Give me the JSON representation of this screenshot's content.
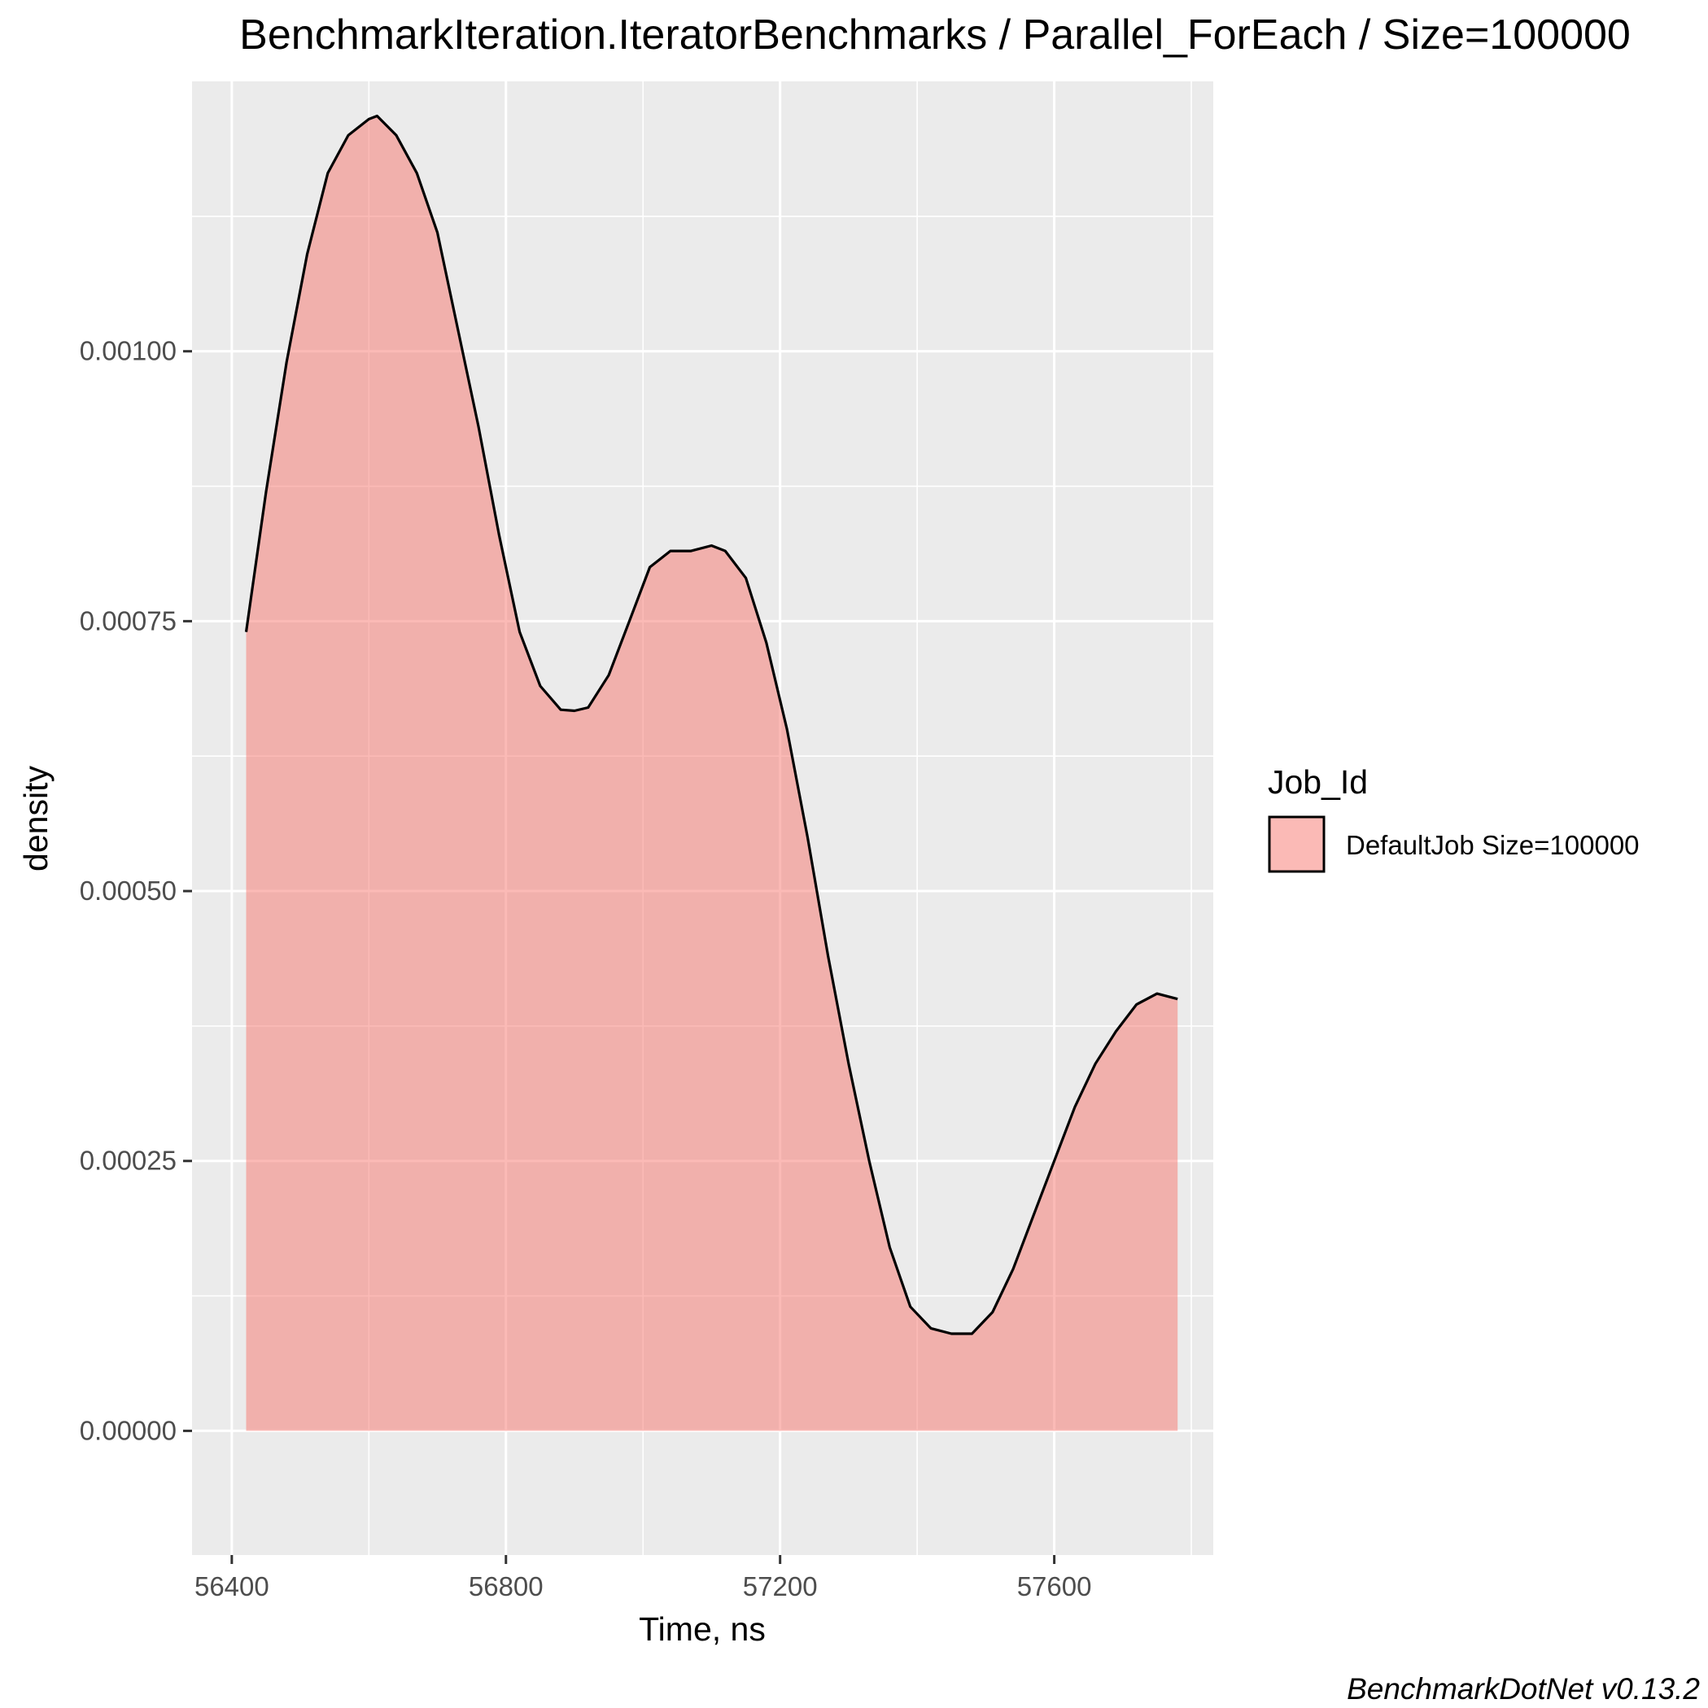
{
  "chart_data": {
    "type": "area",
    "title": "BenchmarkIteration.IteratorBenchmarks / Parallel_ForEach / Size=100000",
    "xlabel": "Time, ns",
    "ylabel": "density",
    "xlim": [
      56342,
      57832
    ],
    "ylim": [
      -0.000115,
      0.00125
    ],
    "x_ticks": [
      56400,
      56800,
      57200,
      57600
    ],
    "x_tick_labels": [
      "56400",
      "56800",
      "57200",
      "57600"
    ],
    "y_ticks": [
      0,
      0.00025,
      0.0005,
      0.00075,
      0.001
    ],
    "y_tick_labels": [
      "0.00000",
      "0.00025",
      "0.00050",
      "0.00075",
      "0.00100"
    ],
    "grid": true,
    "legend": {
      "title": "Job_Id",
      "position": "right"
    },
    "series": [
      {
        "name": "DefaultJob Size=100000",
        "color": "#F8766D",
        "x": [
          56421,
          56450,
          56480,
          56510,
          56540,
          56570,
          56600,
          56612,
          56640,
          56670,
          56700,
          56730,
          56760,
          56790,
          56820,
          56850,
          56880,
          56900,
          56920,
          56950,
          56980,
          57010,
          57040,
          57070,
          57100,
          57120,
          57150,
          57180,
          57210,
          57240,
          57270,
          57300,
          57330,
          57360,
          57390,
          57420,
          57450,
          57480,
          57510,
          57540,
          57570,
          57600,
          57630,
          57660,
          57690,
          57720,
          57750,
          57780
        ],
        "y": [
          0.00074,
          0.00087,
          0.00099,
          0.00109,
          0.001165,
          0.0012,
          0.001215,
          0.001218,
          0.0012,
          0.001165,
          0.00111,
          0.00102,
          0.00093,
          0.00083,
          0.00074,
          0.00069,
          0.000668,
          0.000667,
          0.00067,
          0.0007,
          0.00075,
          0.0008,
          0.000815,
          0.000815,
          0.00082,
          0.000815,
          0.00079,
          0.00073,
          0.00065,
          0.00055,
          0.00044,
          0.00034,
          0.00025,
          0.00017,
          0.000115,
          9.5e-05,
          9e-05,
          9e-05,
          0.00011,
          0.00015,
          0.0002,
          0.00025,
          0.0003,
          0.00034,
          0.00037,
          0.000395,
          0.000405,
          0.0004
        ]
      }
    ]
  },
  "caption": "BenchmarkDotNet v0.13.2"
}
